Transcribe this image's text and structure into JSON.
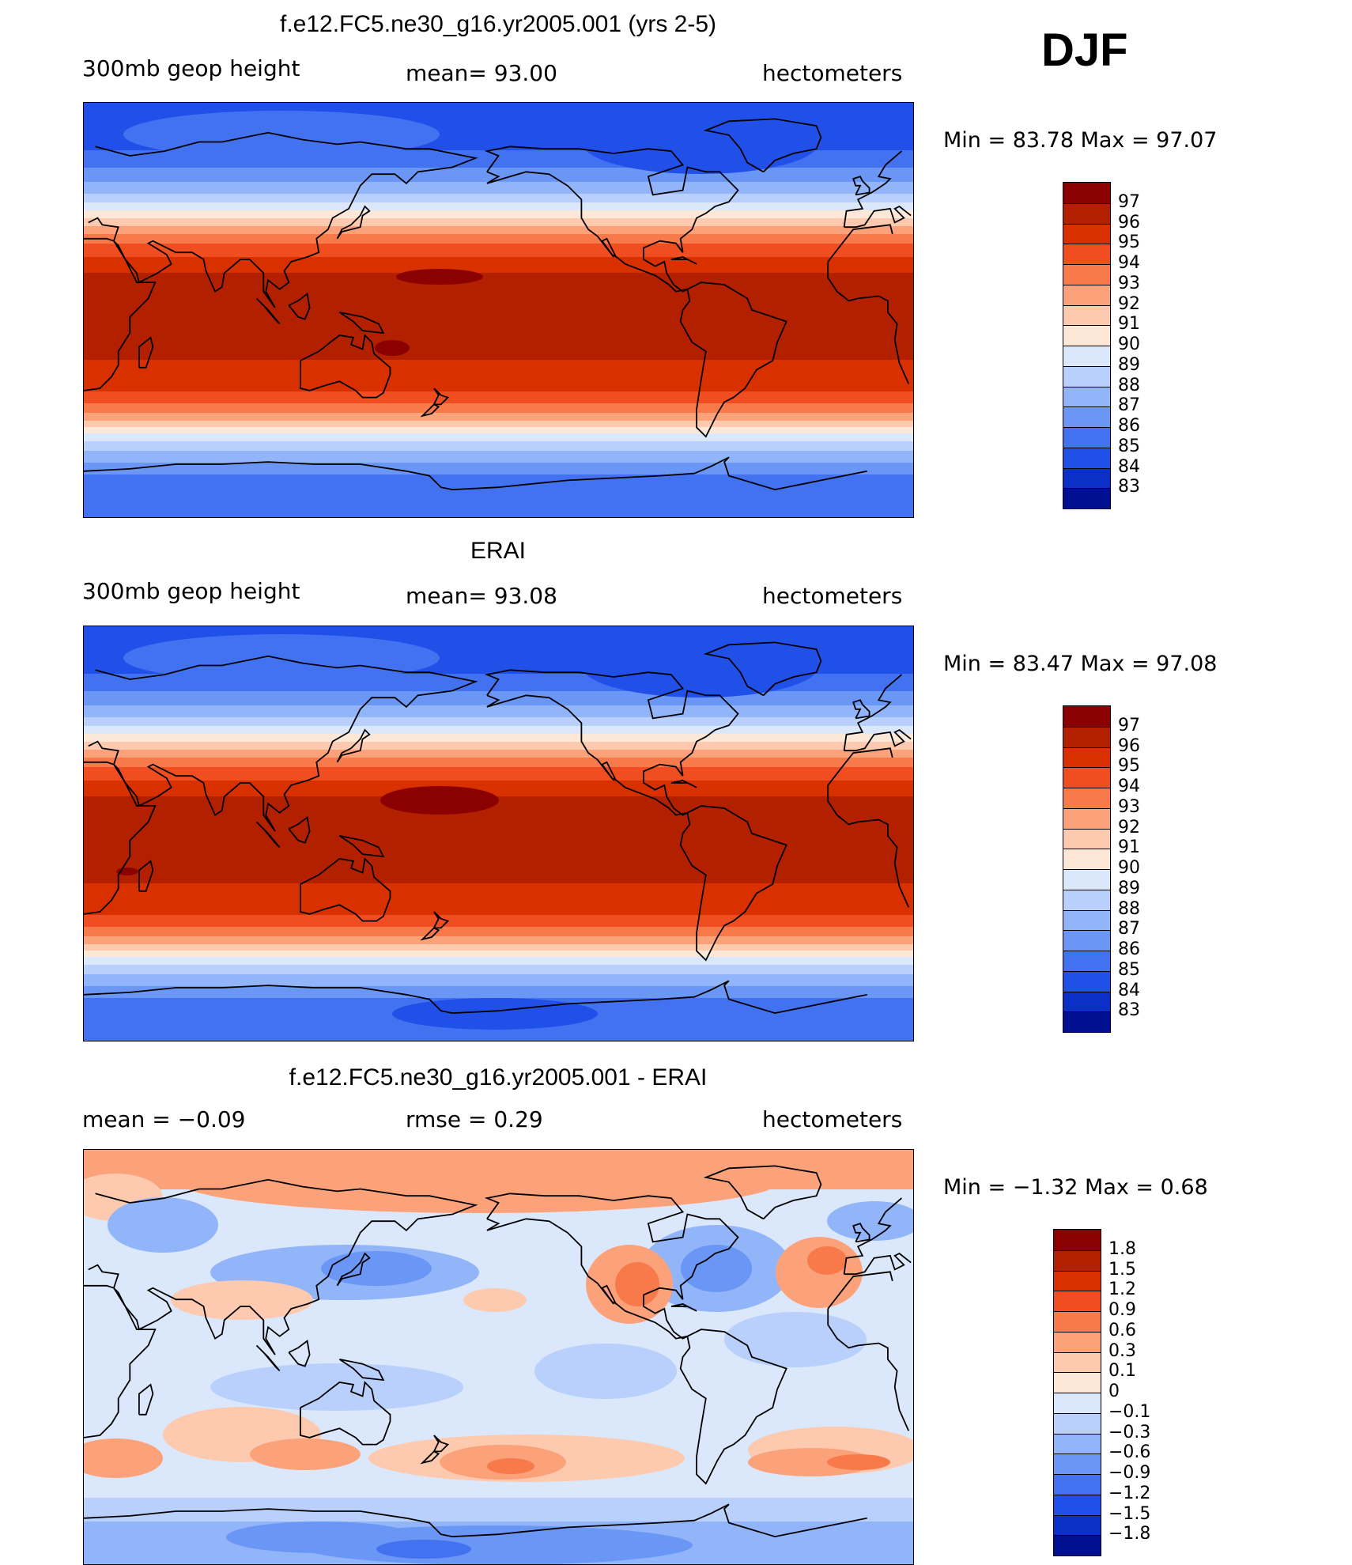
{
  "season": "DJF",
  "panels": [
    {
      "title": "f.e12.FC5.ne30_g16.yr2005.001 (yrs 2-5)",
      "left_text": "300mb  geop  height",
      "center_text": "mean=   93.00",
      "right_text": "hectometers",
      "minmax_text": "Min =    83.78  Max =    97.07",
      "legend_labels": [
        "97",
        "96",
        "95",
        "94",
        "93",
        "92",
        "91",
        "90",
        "89",
        "88",
        "87",
        "86",
        "85",
        "84",
        "83"
      ],
      "colors": [
        "#8b0000",
        "#b22000",
        "#d93000",
        "#f04e20",
        "#f87a4a",
        "#fca27a",
        "#fdcab0",
        "#fde8d8",
        "#dbe8fb",
        "#b8d0fb",
        "#92b4f8",
        "#6a96f5",
        "#4272f0",
        "#2050e8",
        "#0a30c8",
        "#001090"
      ]
    },
    {
      "title": "ERAI",
      "left_text": "300mb  geop  height",
      "center_text": "mean=   93.08",
      "right_text": "hectometers",
      "minmax_text": "Min =    83.47  Max =    97.08",
      "legend_labels": [
        "97",
        "96",
        "95",
        "94",
        "93",
        "92",
        "91",
        "90",
        "89",
        "88",
        "87",
        "86",
        "85",
        "84",
        "83"
      ],
      "colors": [
        "#8b0000",
        "#b22000",
        "#d93000",
        "#f04e20",
        "#f87a4a",
        "#fca27a",
        "#fdcab0",
        "#fde8d8",
        "#dbe8fb",
        "#b8d0fb",
        "#92b4f8",
        "#6a96f5",
        "#4272f0",
        "#2050e8",
        "#0a30c8",
        "#001090"
      ]
    },
    {
      "title": "f.e12.FC5.ne30_g16.yr2005.001 - ERAI",
      "left_text": "mean  =    −0.09",
      "center_text": "rmse  =     0.29",
      "right_text": "hectometers",
      "minmax_text": "Min =    −1.32  Max =      0.68",
      "legend_labels": [
        "1.8",
        "1.5",
        "1.2",
        "0.9",
        "0.6",
        "0.3",
        "0.1",
        "0",
        "−0.1",
        "−0.3",
        "−0.6",
        "−0.9",
        "−1.2",
        "−1.5",
        "−1.8"
      ],
      "colors": [
        "#8b0000",
        "#b22000",
        "#d93000",
        "#f04e20",
        "#f87a4a",
        "#fca27a",
        "#fdcab0",
        "#fde8d8",
        "#dbe8fb",
        "#b8d0fb",
        "#92b4f8",
        "#6a96f5",
        "#4272f0",
        "#2050e8",
        "#0a30c8",
        "#001090"
      ]
    }
  ]
}
